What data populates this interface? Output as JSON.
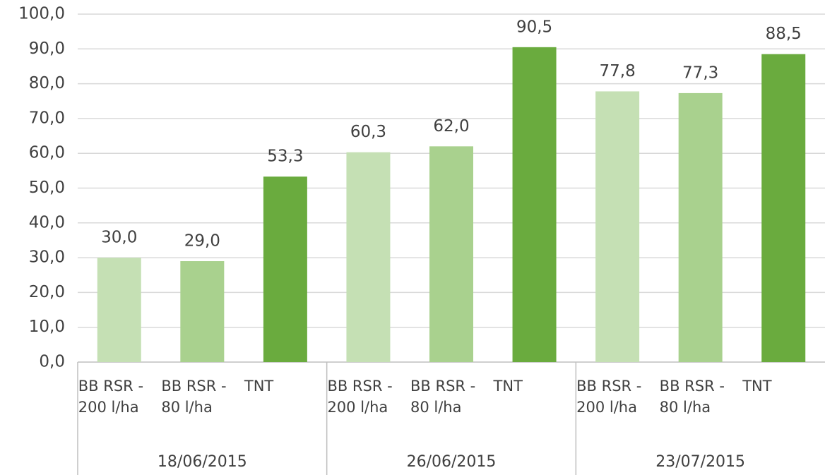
{
  "chart_data": {
    "type": "bar",
    "categories": [
      "BB RSR - 200 l/ha",
      "BB RSR - 80 l/ha",
      "TNT",
      "BB RSR - 200 l/ha",
      "BB RSR - 80 l/ha",
      "TNT",
      "BB RSR - 200 l/ha",
      "BB RSR - 80 l/ha",
      "TNT"
    ],
    "groups": [
      "18/06/2015",
      "26/06/2015",
      "23/07/2015"
    ],
    "values": [
      30.0,
      29.0,
      53.3,
      60.3,
      62.0,
      90.5,
      77.8,
      77.3,
      88.5
    ],
    "value_labels": [
      "30,0",
      "29,0",
      "53,3",
      "60,3",
      "62,0",
      "90,5",
      "77,8",
      "77,3",
      "88,5"
    ],
    "colors": [
      "#c5e0b4",
      "#a9d18e",
      "#6aab3e",
      "#c5e0b4",
      "#a9d18e",
      "#6aab3e",
      "#c5e0b4",
      "#a9d18e",
      "#6aab3e"
    ],
    "ylim": [
      0,
      100
    ],
    "yticks": [
      {
        "value": 0,
        "label": "0,0"
      },
      {
        "value": 10,
        "label": "10,0"
      },
      {
        "value": 20,
        "label": "20,0"
      },
      {
        "value": 30,
        "label": "30,0"
      },
      {
        "value": 40,
        "label": "40,0"
      },
      {
        "value": 50,
        "label": "50,0"
      },
      {
        "value": 60,
        "label": "60,0"
      },
      {
        "value": 70,
        "label": "70,0"
      },
      {
        "value": 80,
        "label": "80,0"
      },
      {
        "value": 90,
        "label": "90,0"
      },
      {
        "value": 100,
        "label": "100,0"
      }
    ],
    "grid": true
  }
}
